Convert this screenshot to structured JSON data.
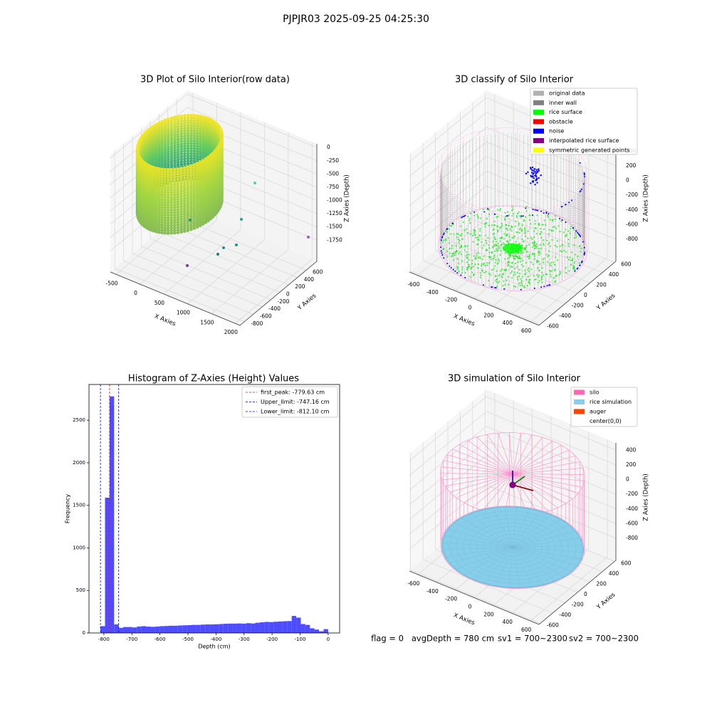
{
  "figure_title": "PJPJR03 2025-09-25 04:25:30",
  "chart_data": [
    {
      "type": "scatter3d",
      "title": "3D Plot of Silo Interior(row data)",
      "xlabel": "X Axies",
      "ylabel": "Y Axies",
      "zlabel": "Z Axies (Depth)",
      "xlim": [
        -620,
        2100
      ],
      "ylim": [
        -900,
        840
      ],
      "zlim": [
        -2150,
        70
      ],
      "xticks": [
        -500,
        0,
        500,
        1000,
        1500,
        2000
      ],
      "yticks": [
        -800,
        -600,
        -400,
        -200,
        0,
        200,
        400,
        600
      ],
      "zticks": [
        0,
        -250,
        -500,
        -750,
        -1000,
        -1250,
        -1500,
        -1750
      ]
    },
    {
      "type": "scatter3d",
      "title": "3D classify of Silo Interior",
      "xlabel": "X Axies",
      "ylabel": "Y Axies",
      "zlabel": "Z Axies (Depth)",
      "xlim": [
        -690,
        690
      ],
      "ylim": [
        -620,
        620
      ],
      "zlim": [
        -1100,
        500
      ],
      "xticks": [
        -600,
        -400,
        -200,
        0,
        200,
        400,
        600
      ],
      "yticks": [
        -600,
        -400,
        -200,
        0,
        200,
        400,
        600
      ],
      "zticks": [
        400,
        200,
        0,
        -200,
        -400,
        -600,
        -800
      ],
      "legend": [
        {
          "name": "original data",
          "color": "#b0b0b0"
        },
        {
          "name": "inner wall",
          "color": "#808080"
        },
        {
          "name": "rice surface",
          "color": "#00ff00"
        },
        {
          "name": "obstacle",
          "color": "#ff0000"
        },
        {
          "name": "noise",
          "color": "#0000ff"
        },
        {
          "name": "interpolated rice surface",
          "color": "#800080"
        },
        {
          "name": "symmetric generated points",
          "color": "#ffff00"
        }
      ]
    },
    {
      "type": "histogram",
      "title": "Histogram of Z-Axies (Height) Values",
      "xlabel": "Depth (cm)",
      "ylabel": "Frequency",
      "color": "#4d4dff",
      "xlim": [
        -853,
        41
      ],
      "ylim": [
        0,
        2920
      ],
      "xticks": [
        -800,
        -700,
        -600,
        -500,
        -400,
        -300,
        -200,
        -100,
        0
      ],
      "yticks": [
        0,
        500,
        1000,
        1500,
        2000,
        2500
      ],
      "bins": [
        -812.1,
        -795.86,
        -779.62,
        -763.37,
        -747.13,
        -730.89,
        -714.65,
        -698.41,
        -682.16,
        -665.92,
        -649.68,
        -633.44,
        -617.2,
        -600.95,
        -584.71,
        -568.47,
        -552.23,
        -535.99,
        -519.74,
        -503.5,
        -487.26,
        -471.02,
        -454.78,
        -438.53,
        -422.29,
        -406.05,
        -389.81,
        -373.57,
        -357.32,
        -341.08,
        -324.84,
        -308.6,
        -292.36,
        -276.11,
        -259.87,
        -243.63,
        -227.39,
        -211.15,
        -194.9,
        -178.66,
        -162.42,
        -146.18,
        -129.94,
        -113.69,
        -97.45,
        -81.21,
        -64.97,
        -48.73,
        -32.48,
        -16.24,
        0
      ],
      "values": [
        80,
        1590,
        2780,
        100,
        60,
        70,
        70,
        65,
        75,
        80,
        75,
        72,
        75,
        80,
        82,
        85,
        85,
        88,
        90,
        92,
        95,
        95,
        98,
        100,
        100,
        102,
        105,
        108,
        110,
        110,
        112,
        110,
        115,
        112,
        120,
        125,
        130,
        128,
        132,
        135,
        138,
        140,
        200,
        180,
        105,
        95,
        55,
        40,
        20,
        45
      ],
      "vlines": [
        {
          "name": "first_peak: -779.63 cm",
          "value": -779.63,
          "color": "#ff0000"
        },
        {
          "name": "Upper_limit: -747.16 cm",
          "value": -747.16,
          "color": "#0000ff"
        },
        {
          "name": "Lower_limit: -812.10 cm",
          "value": -812.1,
          "color": "#0000ff"
        }
      ]
    },
    {
      "type": "surface3d",
      "title": "3D simulation of Silo Interior",
      "xlabel": "X Axies",
      "ylabel": "Y Axies",
      "zlabel": "Z Axies (Depth)",
      "xlim": [
        -690,
        690
      ],
      "ylim": [
        -620,
        620
      ],
      "zlim": [
        -1100,
        500
      ],
      "xticks": [
        -600,
        -400,
        -200,
        0,
        200,
        400,
        600
      ],
      "yticks": [
        -600,
        -400,
        -200,
        0,
        200,
        400,
        600
      ],
      "zticks": [
        400,
        200,
        0,
        -200,
        -400,
        -600,
        -800
      ],
      "legend": [
        {
          "name": "silo",
          "color": "#ff69b4"
        },
        {
          "name": "rice simulation",
          "color": "#87ceeb"
        },
        {
          "name": "auger",
          "color": "#ff4500"
        },
        {
          "name": "center(0,0)",
          "color": "#ffffff"
        }
      ]
    }
  ],
  "footer": [
    "flag = 0",
    "avgDepth = 780 cm",
    "sv1 = 700~2300",
    "sv2 = 700~2300"
  ]
}
